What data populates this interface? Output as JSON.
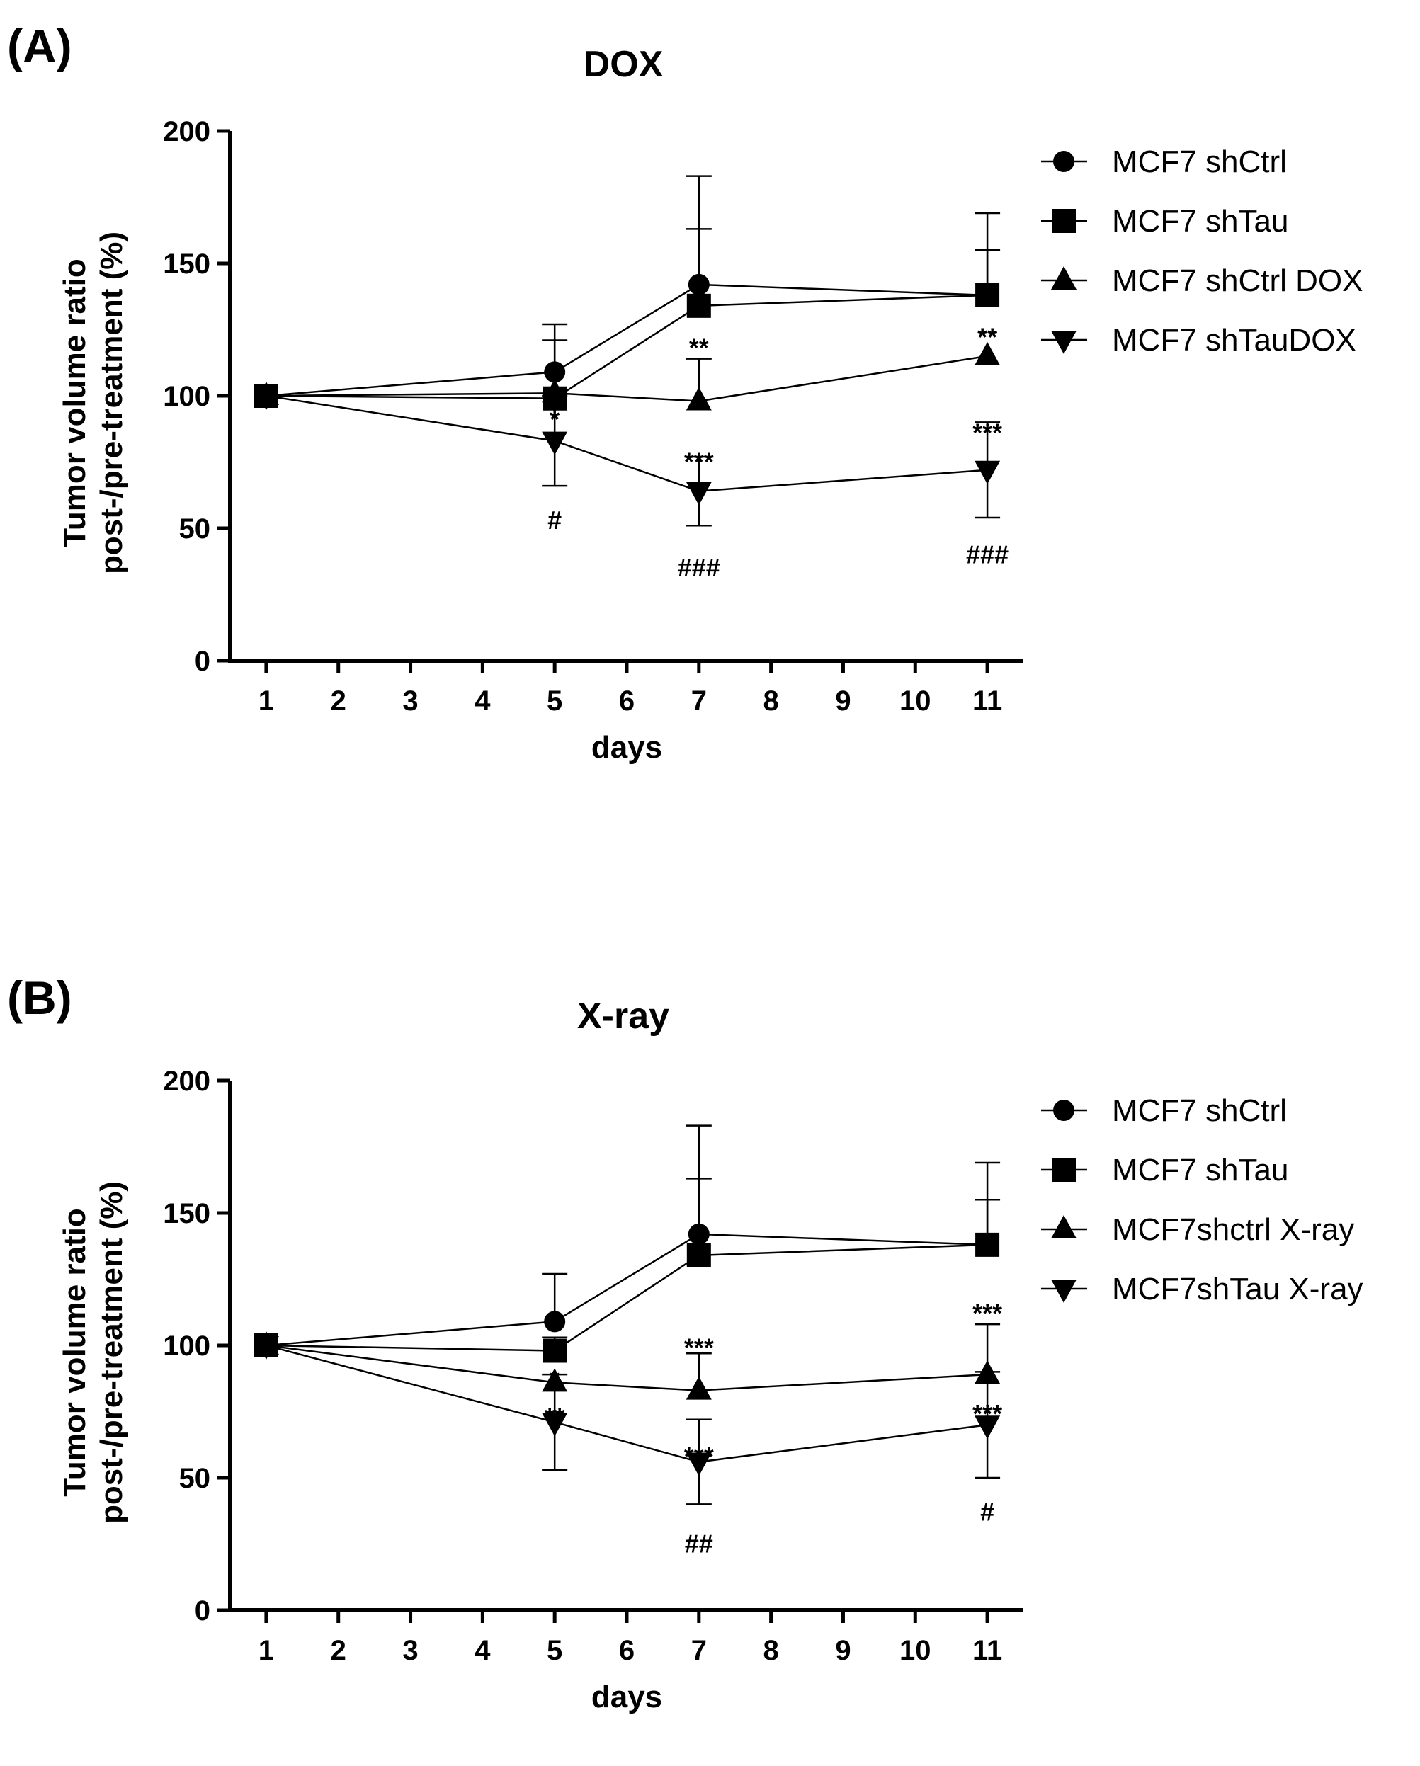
{
  "chart_data": [
    {
      "type": "line",
      "panel_label": "(A)",
      "title": "DOX",
      "xlabel": "days",
      "ylabel_line1": "Tumor volume ratio",
      "ylabel_line2": "post-/pre-treatment (%)",
      "xlim": [
        0.5,
        11.5
      ],
      "ylim": [
        0,
        200
      ],
      "xticks": [
        1,
        2,
        3,
        4,
        5,
        6,
        7,
        8,
        9,
        10,
        11
      ],
      "yticks": [
        0,
        50,
        100,
        150,
        200
      ],
      "x": [
        1,
        5,
        7,
        11
      ],
      "legend_position": "right",
      "series": [
        {
          "name": "MCF7 shCtrl",
          "marker": "circle",
          "values": [
            100,
            109,
            142,
            138
          ],
          "error": [
            0,
            18,
            41,
            31
          ]
        },
        {
          "name": "MCF7 shTau",
          "marker": "square",
          "values": [
            100,
            99,
            134,
            138
          ],
          "error": [
            0,
            22,
            29,
            17
          ]
        },
        {
          "name": "MCF7 shCtrl DOX",
          "marker": "triangle-up",
          "values": [
            100,
            101,
            98,
            115
          ],
          "error": [
            0,
            0,
            16,
            0
          ]
        },
        {
          "name": "MCF7 shTauDOX",
          "marker": "triangle-down",
          "values": [
            100,
            83,
            64,
            72
          ],
          "error": [
            0,
            17,
            13,
            18
          ]
        }
      ],
      "annotations": [
        {
          "text": "*",
          "x": 5,
          "y": 91
        },
        {
          "text": "#",
          "x": 5,
          "y": 53
        },
        {
          "text": "**",
          "x": 7,
          "y": 118
        },
        {
          "text": "***",
          "x": 7,
          "y": 75
        },
        {
          "text": "###",
          "x": 7,
          "y": 35
        },
        {
          "text": "**",
          "x": 11,
          "y": 122
        },
        {
          "text": "***",
          "x": 11,
          "y": 86
        },
        {
          "text": "###",
          "x": 11,
          "y": 40
        }
      ]
    },
    {
      "type": "line",
      "panel_label": "(B)",
      "title": "X-ray",
      "xlabel": "days",
      "ylabel_line1": "Tumor volume ratio",
      "ylabel_line2": "post-/pre-treatment (%)",
      "xlim": [
        0.5,
        11.5
      ],
      "ylim": [
        0,
        200
      ],
      "xticks": [
        1,
        2,
        3,
        4,
        5,
        6,
        7,
        8,
        9,
        10,
        11
      ],
      "yticks": [
        0,
        50,
        100,
        150,
        200
      ],
      "x": [
        1,
        5,
        7,
        11
      ],
      "legend_position": "right",
      "series": [
        {
          "name": "MCF7 shCtrl",
          "marker": "circle",
          "values": [
            100,
            109,
            142,
            138
          ],
          "error": [
            0,
            18,
            41,
            31
          ]
        },
        {
          "name": "MCF7 shTau",
          "marker": "square",
          "values": [
            100,
            98,
            134,
            138
          ],
          "error": [
            0,
            5,
            29,
            17
          ]
        },
        {
          "name": "MCF7shctrl X-ray",
          "marker": "triangle-up",
          "values": [
            100,
            86,
            83,
            89
          ],
          "error": [
            0,
            0,
            14,
            19
          ]
        },
        {
          "name": "MCF7shTau X-ray",
          "marker": "triangle-down",
          "values": [
            100,
            71,
            56,
            70
          ],
          "error": [
            0,
            18,
            16,
            20
          ]
        }
      ],
      "annotations": [
        {
          "text": "*",
          "x": 5,
          "y": 87
        },
        {
          "text": "**",
          "x": 5,
          "y": 73
        },
        {
          "text": "***",
          "x": 7,
          "y": 99
        },
        {
          "text": "***",
          "x": 7,
          "y": 58
        },
        {
          "text": "##",
          "x": 7,
          "y": 25
        },
        {
          "text": "***",
          "x": 11,
          "y": 112
        },
        {
          "text": "***",
          "x": 11,
          "y": 74
        },
        {
          "text": "#",
          "x": 11,
          "y": 37
        }
      ]
    }
  ]
}
